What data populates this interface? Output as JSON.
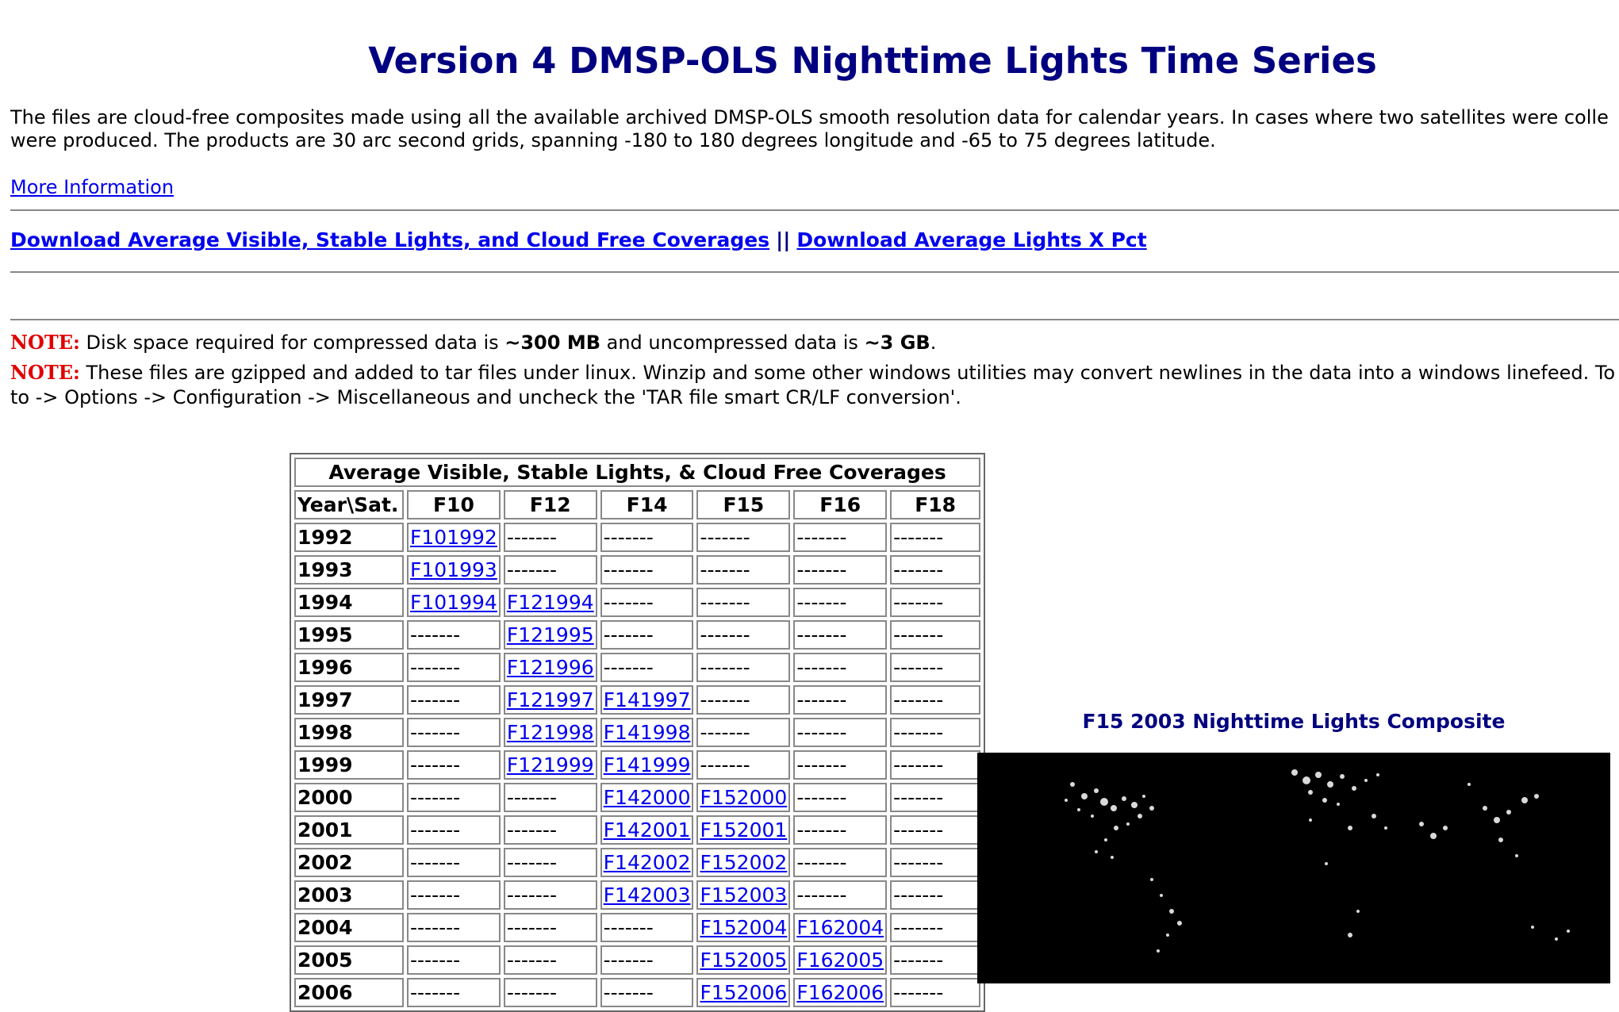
{
  "page": {
    "title": "Version 4 DMSP-OLS Nighttime Lights Time Series",
    "intro_line1": "The files are cloud-free composites made using all the available archived DMSP-OLS smooth resolution data for calendar years. In cases where two satellites were colle",
    "intro_line2": "were produced. The products are 30 arc second grids, spanning -180 to 180 degrees longitude and -65 to 75 degrees latitude.",
    "more_info_link": "More Information"
  },
  "downloads": {
    "link1": "Download Average Visible, Stable Lights, and Cloud Free Coverages",
    "separator": "||",
    "link2": "Download Average Lights X Pct"
  },
  "notes": [
    {
      "label": "NOTE:",
      "text_before": " Disk space required for compressed data is ",
      "bold1": "~300 MB",
      "text_middle": " and uncompressed data is ",
      "bold2": "~3 GB",
      "text_after": "."
    },
    {
      "label": "NOTE:",
      "line1": " These files are gzipped and added to tar files under linux. Winzip and some other windows utilities may convert newlines in the data into a windows linefeed. To",
      "line2": "to -> Options -> Configuration -> Miscellaneous and uncheck the 'TAR file smart CR/LF conversion'."
    }
  ],
  "table": {
    "caption": "Average Visible, Stable Lights, & Cloud Free Coverages",
    "corner_header": "Year\\Sat.",
    "columns": [
      "F10",
      "F12",
      "F14",
      "F15",
      "F16",
      "F18"
    ],
    "empty_marker": "-------",
    "rows": [
      {
        "year": "1992",
        "cells": [
          "F101992",
          "",
          "",
          "",
          "",
          ""
        ]
      },
      {
        "year": "1993",
        "cells": [
          "F101993",
          "",
          "",
          "",
          "",
          ""
        ]
      },
      {
        "year": "1994",
        "cells": [
          "F101994",
          "F121994",
          "",
          "",
          "",
          ""
        ]
      },
      {
        "year": "1995",
        "cells": [
          "",
          "F121995",
          "",
          "",
          "",
          ""
        ]
      },
      {
        "year": "1996",
        "cells": [
          "",
          "F121996",
          "",
          "",
          "",
          ""
        ]
      },
      {
        "year": "1997",
        "cells": [
          "",
          "F121997",
          "F141997",
          "",
          "",
          ""
        ]
      },
      {
        "year": "1998",
        "cells": [
          "",
          "F121998",
          "F141998",
          "",
          "",
          ""
        ]
      },
      {
        "year": "1999",
        "cells": [
          "",
          "F121999",
          "F141999",
          "",
          "",
          ""
        ]
      },
      {
        "year": "2000",
        "cells": [
          "",
          "",
          "F142000",
          "F152000",
          "",
          ""
        ]
      },
      {
        "year": "2001",
        "cells": [
          "",
          "",
          "F142001",
          "F152001",
          "",
          ""
        ]
      },
      {
        "year": "2002",
        "cells": [
          "",
          "",
          "F142002",
          "F152002",
          "",
          ""
        ]
      },
      {
        "year": "2003",
        "cells": [
          "",
          "",
          "F142003",
          "F152003",
          "",
          ""
        ]
      },
      {
        "year": "2004",
        "cells": [
          "",
          "",
          "",
          "F152004",
          "F162004",
          ""
        ]
      },
      {
        "year": "2005",
        "cells": [
          "",
          "",
          "",
          "F152005",
          "F162005",
          ""
        ]
      },
      {
        "year": "2006",
        "cells": [
          "",
          "",
          "",
          "F152006",
          "F162006",
          ""
        ]
      }
    ]
  },
  "figure": {
    "caption": "F15 2003 Nighttime Lights Composite",
    "image_desc": "world-nighttime-lights-map"
  },
  "colors": {
    "title": "#000080",
    "link": "#0000ee",
    "note_label": "#e00000",
    "map_background": "#000000"
  }
}
